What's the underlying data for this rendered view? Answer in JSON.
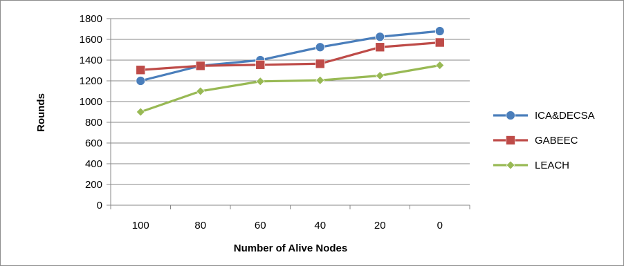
{
  "chart_data": {
    "type": "line",
    "title": "",
    "xlabel": "Number of Alive Nodes",
    "ylabel": "Rounds",
    "categories": [
      "100",
      "80",
      "60",
      "40",
      "20",
      "0"
    ],
    "ylim": [
      0,
      1800
    ],
    "yticks": [
      0,
      200,
      400,
      600,
      800,
      1000,
      1200,
      1400,
      1600,
      1800
    ],
    "grid": true,
    "legend_position": "right",
    "series": [
      {
        "name": "ICA&DECSA",
        "color": "#4a7ebb",
        "marker": "circle",
        "values": [
          1200,
          1345,
          1400,
          1525,
          1625,
          1680
        ]
      },
      {
        "name": "GABEEC",
        "color": "#be4b48",
        "marker": "square",
        "values": [
          1305,
          1345,
          1355,
          1365,
          1525,
          1570
        ]
      },
      {
        "name": "LEACH",
        "color": "#98b954",
        "marker": "diamond",
        "values": [
          900,
          1100,
          1195,
          1205,
          1250,
          1350
        ]
      }
    ]
  }
}
